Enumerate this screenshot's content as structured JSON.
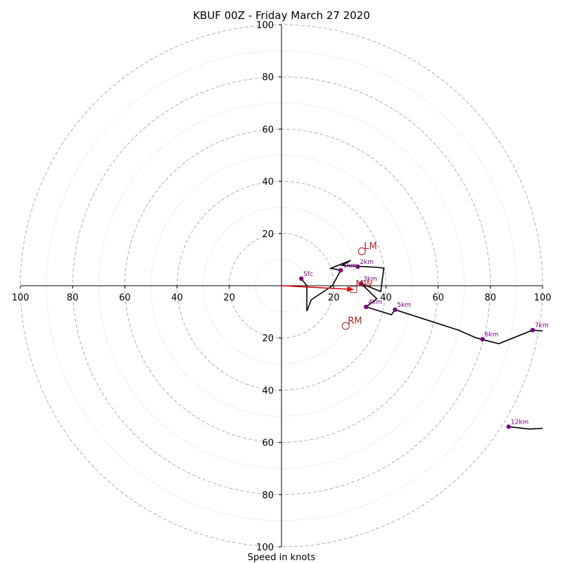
{
  "chart_data": {
    "type": "hodograph",
    "title": "KBUF 00Z - Friday March 27 2020",
    "xlabel": "Speed in knots",
    "ylabel": "",
    "range": [
      -100,
      100
    ],
    "major_rings": [
      20,
      40,
      60,
      80,
      100
    ],
    "minor_rings": [
      10,
      30,
      50,
      70,
      90
    ],
    "tick_labels": {
      "x": [
        {
          "v": -100,
          "label": "100"
        },
        {
          "v": -80,
          "label": "80"
        },
        {
          "v": -60,
          "label": "60"
        },
        {
          "v": -40,
          "label": "40"
        },
        {
          "v": -20,
          "label": "20"
        },
        {
          "v": 20,
          "label": "20"
        },
        {
          "v": 40,
          "label": "40"
        },
        {
          "v": 60,
          "label": "60"
        },
        {
          "v": 80,
          "label": "80"
        },
        {
          "v": 100,
          "label": "100"
        }
      ],
      "y": [
        {
          "v": 100,
          "label": "100"
        },
        {
          "v": 80,
          "label": "80"
        },
        {
          "v": 60,
          "label": "60"
        },
        {
          "v": 40,
          "label": "40"
        },
        {
          "v": 20,
          "label": "20"
        },
        {
          "v": -20,
          "label": "20"
        },
        {
          "v": -40,
          "label": "40"
        },
        {
          "v": -60,
          "label": "60"
        },
        {
          "v": -80,
          "label": "80"
        },
        {
          "v": -100,
          "label": "100"
        }
      ]
    },
    "trace": [
      [
        7.6,
        2.7
      ],
      [
        9.7,
        0.0
      ],
      [
        9.7,
        -9.7
      ],
      [
        11.4,
        -5.4
      ],
      [
        19.5,
        0.0
      ],
      [
        22.7,
        5.9
      ],
      [
        18.9,
        6.7
      ],
      [
        26.5,
        9.7
      ],
      [
        23.2,
        7.8
      ],
      [
        37.2,
        7.0
      ],
      [
        39.2,
        6.7
      ],
      [
        38.0,
        -2.2
      ],
      [
        30.5,
        0.8
      ],
      [
        36.5,
        -5.0
      ],
      [
        32.4,
        -8.1
      ],
      [
        42.1,
        -11.1
      ],
      [
        43.5,
        -9.2
      ],
      [
        67.8,
        -17.0
      ],
      [
        74.6,
        -20.0
      ],
      [
        83.2,
        -22.2
      ],
      [
        96.2,
        -17.0
      ],
      [
        100.0,
        -17.3
      ]
    ],
    "trace2": [
      [
        87.0,
        -54.0
      ],
      [
        95.0,
        -54.9
      ],
      [
        100.0,
        -54.6
      ]
    ],
    "height_markers": [
      {
        "label": "Sfc",
        "u": 7.6,
        "v": 2.7
      },
      {
        "label": "1km",
        "u": 22.7,
        "v": 5.9
      },
      {
        "label": "2km",
        "u": 29.2,
        "v": 7.3
      },
      {
        "label": "3km",
        "u": 30.5,
        "v": 0.8
      },
      {
        "label": "4km",
        "u": 32.4,
        "v": -8.1
      },
      {
        "label": "5km",
        "u": 43.5,
        "v": -9.2
      },
      {
        "label": "6km",
        "u": 77.0,
        "v": -20.5
      },
      {
        "label": "7km",
        "u": 96.2,
        "v": -17.0
      },
      {
        "label": "12km",
        "u": 87.0,
        "v": -54.0
      }
    ],
    "storm_motions": [
      {
        "label": "LM",
        "u": 30.8,
        "v": 13.2,
        "symbol": "circle"
      },
      {
        "label": "RM",
        "u": 24.6,
        "v": -15.4,
        "symbol": "circle"
      },
      {
        "label": "MW",
        "u": 27.6,
        "v": -1.4,
        "symbol": "square"
      }
    ],
    "shear_vector": {
      "from": [
        0,
        0
      ],
      "to": [
        27.6,
        -1.4
      ]
    },
    "colors": {
      "trace": "#000000",
      "markers": "#800080",
      "storm_motion": "#b22222",
      "shear_vector": "#e00000",
      "grid": "#b0b0b0"
    },
    "grid": true
  }
}
